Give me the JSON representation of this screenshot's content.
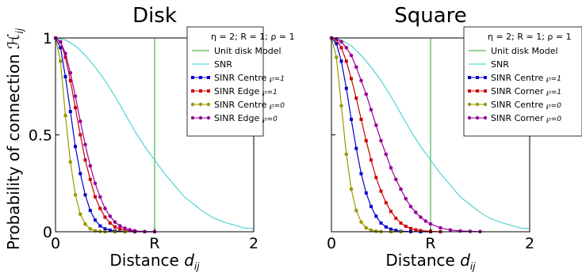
{
  "ylabel": "Probability of connection",
  "ylabel_symbol": "ℋ",
  "ylabel_sub": "ij",
  "xlabel": "Distance",
  "xlabel_symbol": "d",
  "xlabel_sub": "ij",
  "colors": {
    "unit_disk": "#2ca02c",
    "snr": "#33cccc",
    "sinr_center_1": "#0000cc",
    "sinr_edge_1": "#cc0000",
    "sinr_center_0": "#999900",
    "sinr_edge_0": "#990099"
  },
  "chart_data": [
    {
      "type": "line",
      "title": "Disk",
      "xlim": [
        0,
        2
      ],
      "ylim": [
        0,
        1
      ],
      "xticks": [
        {
          "value": 0,
          "label": "0"
        },
        {
          "value": 1,
          "label": "R"
        },
        {
          "value": 2,
          "label": "2"
        }
      ],
      "yticks": [
        {
          "value": 0,
          "label": "0"
        },
        {
          "value": 0.5,
          "label": "0.5"
        },
        {
          "value": 1,
          "label": "1"
        }
      ],
      "legend_header": "η = 2; R = 1; ρ = 1",
      "legend_position": "upper-right",
      "series": [
        {
          "name": "Unit disk Model",
          "key": "unit_disk",
          "marker": "none",
          "x": [
            0,
            1,
            1,
            2
          ],
          "y": [
            1,
            1,
            0,
            0
          ]
        },
        {
          "name": "SNR",
          "key": "snr",
          "marker": "none",
          "x": [
            0,
            0.1,
            0.2,
            0.3,
            0.4,
            0.5,
            0.6,
            0.7,
            0.8,
            0.9,
            1.0,
            1.1,
            1.2,
            1.3,
            1.4,
            1.5,
            1.6,
            1.7,
            1.8,
            1.9,
            2.0
          ],
          "y": [
            1.0,
            0.99,
            0.96,
            0.91,
            0.85,
            0.78,
            0.7,
            0.61,
            0.52,
            0.44,
            0.37,
            0.3,
            0.24,
            0.18,
            0.14,
            0.1,
            0.07,
            0.05,
            0.035,
            0.02,
            0.015
          ]
        },
        {
          "name": "SINR Centre",
          "param": "℘=1",
          "key": "sinr_center_1",
          "marker": "square",
          "x": [
            0,
            0.05,
            0.1,
            0.15,
            0.2,
            0.25,
            0.3,
            0.35,
            0.4,
            0.45,
            0.5,
            0.55,
            0.6,
            0.7,
            0.8,
            0.9,
            1.0
          ],
          "y": [
            1.0,
            0.95,
            0.8,
            0.62,
            0.44,
            0.3,
            0.19,
            0.11,
            0.06,
            0.03,
            0.015,
            0.008,
            0.004,
            0.001,
            0,
            0,
            0
          ]
        },
        {
          "name": "SINR Edge",
          "param": "℘=1",
          "key": "sinr_edge_1",
          "marker": "square",
          "x": [
            0,
            0.05,
            0.1,
            0.15,
            0.2,
            0.25,
            0.3,
            0.35,
            0.4,
            0.45,
            0.5,
            0.55,
            0.6,
            0.65,
            0.7,
            0.8,
            0.9,
            1.0
          ],
          "y": [
            1.0,
            0.98,
            0.9,
            0.78,
            0.64,
            0.5,
            0.37,
            0.27,
            0.18,
            0.12,
            0.075,
            0.045,
            0.025,
            0.014,
            0.008,
            0.002,
            0,
            0
          ]
        },
        {
          "name": "SINR Centre",
          "param": "℘=0",
          "key": "sinr_center_0",
          "marker": "circle",
          "x": [
            0,
            0.05,
            0.1,
            0.15,
            0.2,
            0.25,
            0.3,
            0.35,
            0.4,
            0.45,
            0.5,
            0.6,
            0.7
          ],
          "y": [
            1.0,
            0.88,
            0.6,
            0.36,
            0.19,
            0.09,
            0.04,
            0.015,
            0.005,
            0.002,
            0,
            0,
            0
          ]
        },
        {
          "name": "SINR Edge",
          "param": "℘=0",
          "key": "sinr_edge_0",
          "marker": "circle",
          "x": [
            0,
            0.05,
            0.1,
            0.15,
            0.2,
            0.25,
            0.3,
            0.35,
            0.4,
            0.45,
            0.5,
            0.55,
            0.6,
            0.65,
            0.7,
            0.75,
            0.8,
            0.9,
            1.0
          ],
          "y": [
            1.0,
            0.98,
            0.92,
            0.82,
            0.7,
            0.57,
            0.45,
            0.34,
            0.25,
            0.18,
            0.12,
            0.08,
            0.05,
            0.03,
            0.018,
            0.01,
            0.005,
            0.001,
            0
          ]
        }
      ]
    },
    {
      "type": "line",
      "title": "Square",
      "xlim": [
        0,
        2
      ],
      "ylim": [
        0,
        1
      ],
      "xticks": [
        {
          "value": 0,
          "label": "0"
        },
        {
          "value": 1,
          "label": "R"
        },
        {
          "value": 2,
          "label": "2"
        }
      ],
      "yticks": [
        {
          "value": 0,
          "label": ""
        },
        {
          "value": 0.5,
          "label": ""
        },
        {
          "value": 1,
          "label": ""
        }
      ],
      "legend_header": "η = 2; R = 1; ρ = 1",
      "legend_position": "upper-right",
      "series": [
        {
          "name": "Unit disk Model",
          "key": "unit_disk",
          "marker": "none",
          "x": [
            0,
            1,
            1,
            2
          ],
          "y": [
            1,
            1,
            0,
            0
          ]
        },
        {
          "name": "SNR",
          "key": "snr",
          "marker": "none",
          "x": [
            0,
            0.1,
            0.2,
            0.3,
            0.4,
            0.5,
            0.6,
            0.7,
            0.8,
            0.9,
            1.0,
            1.1,
            1.2,
            1.3,
            1.4,
            1.5,
            1.6,
            1.7,
            1.8,
            1.9,
            2.0
          ],
          "y": [
            1.0,
            0.99,
            0.96,
            0.91,
            0.85,
            0.78,
            0.7,
            0.61,
            0.52,
            0.44,
            0.37,
            0.3,
            0.24,
            0.18,
            0.14,
            0.1,
            0.07,
            0.05,
            0.035,
            0.02,
            0.015
          ]
        },
        {
          "name": "SINR Centre",
          "param": "℘=1",
          "key": "sinr_center_1",
          "marker": "square",
          "x": [
            0,
            0.05,
            0.1,
            0.15,
            0.2,
            0.25,
            0.3,
            0.35,
            0.4,
            0.45,
            0.5,
            0.55,
            0.6,
            0.65,
            0.7,
            0.8,
            0.9,
            1.0
          ],
          "y": [
            1.0,
            0.97,
            0.88,
            0.74,
            0.58,
            0.43,
            0.3,
            0.2,
            0.13,
            0.08,
            0.045,
            0.025,
            0.013,
            0.007,
            0.003,
            0.001,
            0,
            0
          ]
        },
        {
          "name": "SINR Corner",
          "param": "℘=1",
          "key": "sinr_edge_1",
          "marker": "square",
          "x": [
            0,
            0.05,
            0.1,
            0.15,
            0.2,
            0.25,
            0.3,
            0.35,
            0.4,
            0.45,
            0.5,
            0.55,
            0.6,
            0.65,
            0.7,
            0.75,
            0.8,
            0.85,
            0.9,
            1.0,
            1.1
          ],
          "y": [
            1.0,
            0.99,
            0.95,
            0.88,
            0.79,
            0.69,
            0.58,
            0.47,
            0.37,
            0.28,
            0.21,
            0.15,
            0.105,
            0.07,
            0.045,
            0.028,
            0.017,
            0.01,
            0.006,
            0.002,
            0
          ]
        },
        {
          "name": "SINR Centre",
          "param": "℘=0",
          "key": "sinr_center_0",
          "marker": "circle",
          "x": [
            0,
            0.05,
            0.1,
            0.15,
            0.2,
            0.25,
            0.3,
            0.35,
            0.4,
            0.45,
            0.5,
            0.6,
            0.7
          ],
          "y": [
            1.0,
            0.9,
            0.65,
            0.4,
            0.22,
            0.11,
            0.05,
            0.02,
            0.008,
            0.003,
            0.001,
            0,
            0
          ]
        },
        {
          "name": "SINR Corner",
          "param": "℘=0",
          "key": "sinr_edge_0",
          "marker": "circle",
          "x": [
            0,
            0.05,
            0.1,
            0.15,
            0.2,
            0.25,
            0.3,
            0.35,
            0.4,
            0.45,
            0.5,
            0.55,
            0.6,
            0.65,
            0.7,
            0.75,
            0.8,
            0.85,
            0.9,
            0.95,
            1.0,
            1.1,
            1.2,
            1.3,
            1.4,
            1.5
          ],
          "y": [
            1.0,
            0.995,
            0.98,
            0.95,
            0.91,
            0.85,
            0.78,
            0.71,
            0.63,
            0.55,
            0.47,
            0.4,
            0.33,
            0.27,
            0.22,
            0.17,
            0.13,
            0.1,
            0.075,
            0.055,
            0.04,
            0.02,
            0.009,
            0.004,
            0.002,
            0.001
          ]
        }
      ]
    }
  ]
}
